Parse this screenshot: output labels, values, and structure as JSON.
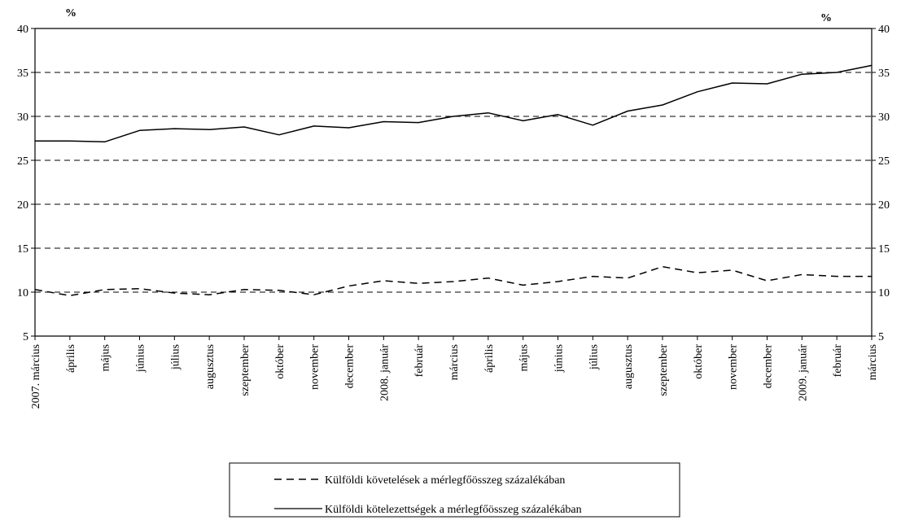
{
  "chart_data": {
    "type": "line",
    "unit_left": "%",
    "unit_right": "%",
    "ylim": [
      5,
      40
    ],
    "yticks": [
      5,
      10,
      15,
      20,
      25,
      30,
      35,
      40
    ],
    "grid": "horizontal dashed",
    "legend_position": "bottom-center",
    "categories": [
      "2007. március",
      "április",
      "május",
      "június",
      "július",
      "augusztus",
      "szeptember",
      "október",
      "november",
      "december",
      "2008. január",
      "február",
      "március",
      "április",
      "május",
      "június",
      "július",
      "augusztus",
      "szeptember",
      "október",
      "november",
      "december",
      "2009. január",
      "február",
      "március"
    ],
    "series": [
      {
        "name": "Külföldi követelések a mérlegfőösszeg százalékában",
        "style": "dashed",
        "values": [
          10.3,
          9.6,
          10.3,
          10.4,
          9.9,
          9.7,
          10.3,
          10.2,
          9.7,
          10.7,
          11.3,
          11.0,
          11.2,
          11.6,
          10.8,
          11.2,
          11.8,
          11.6,
          12.9,
          12.2,
          12.5,
          11.3,
          12.0,
          11.8,
          11.8
        ]
      },
      {
        "name": "Külföldi kötelezettségek a mérlegfőösszeg százalékában",
        "style": "solid",
        "values": [
          27.2,
          27.2,
          27.1,
          28.4,
          28.6,
          28.5,
          28.8,
          27.9,
          28.9,
          28.7,
          29.4,
          29.3,
          30.0,
          30.4,
          29.5,
          30.2,
          29.0,
          30.6,
          31.3,
          32.8,
          33.8,
          33.7,
          34.8,
          35.0,
          35.8
        ]
      }
    ]
  }
}
